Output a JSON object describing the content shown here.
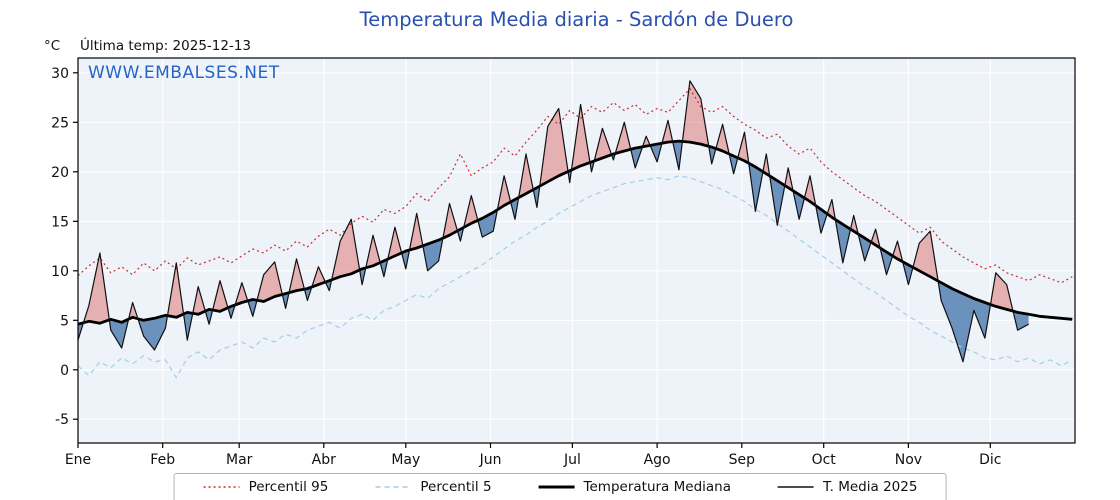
{
  "chart_data": {
    "type": "line",
    "title": "Temperatura Media diaria - Sardón de Duero",
    "units": "°C",
    "subtitle": "Última temp: 2025-12-13",
    "watermark": "WWW.EMBALSES.NET",
    "ylim": [
      -7.4,
      31.5
    ],
    "yticks": [
      -5,
      0,
      5,
      10,
      15,
      20,
      25,
      30
    ],
    "months": [
      "Ene",
      "Feb",
      "Mar",
      "Abr",
      "May",
      "Jun",
      "Jul",
      "Ago",
      "Sep",
      "Oct",
      "Nov",
      "Dic"
    ],
    "month_start_days": [
      0,
      31,
      59,
      90,
      120,
      151,
      181,
      212,
      243,
      273,
      304,
      334
    ],
    "day_step": 4,
    "colors": {
      "plot_bg": "#eef3f9",
      "grid": "#ffffff",
      "frame": "#000000",
      "title": "#2a4fae",
      "watermark": "#2563c9",
      "fill_above": "#d9534f",
      "fill_above_opacity": 0.42,
      "fill_below": "#3f72a8",
      "fill_below_opacity": 0.75
    },
    "series": [
      {
        "name": "Percentil 95",
        "color": "#cc2b2b",
        "style": "dotted",
        "width": 1.2,
        "values": [
          9.5,
          10.5,
          11.3,
          9.8,
          10.4,
          9.6,
          10.8,
          10.0,
          11.0,
          10.2,
          11.3,
          10.6,
          11.0,
          11.4,
          10.8,
          11.5,
          12.2,
          11.8,
          12.6,
          12.0,
          13.0,
          12.4,
          13.5,
          14.2,
          13.6,
          14.8,
          15.5,
          14.9,
          16.2,
          15.8,
          16.5,
          17.8,
          17.0,
          18.4,
          19.5,
          21.8,
          19.6,
          20.4,
          21.0,
          22.4,
          21.6,
          23.0,
          24.2,
          25.6,
          24.8,
          26.2,
          25.4,
          26.6,
          26.0,
          27.0,
          26.2,
          26.8,
          25.8,
          26.4,
          26.0,
          27.2,
          28.4,
          26.6,
          26.0,
          26.6,
          25.6,
          24.8,
          24.2,
          23.4,
          23.8,
          22.6,
          21.8,
          22.4,
          21.0,
          20.0,
          19.2,
          18.4,
          17.6,
          17.0,
          16.2,
          15.4,
          14.6,
          13.8,
          14.4,
          13.0,
          12.2,
          11.4,
          10.8,
          10.2,
          10.6,
          9.8,
          9.4,
          9.0,
          9.6,
          9.2,
          8.8,
          9.4
        ]
      },
      {
        "name": "Percentil 5",
        "color": "#9fcfe8",
        "style": "dashed",
        "width": 1.2,
        "values": [
          0.4,
          -0.6,
          0.8,
          0.2,
          1.2,
          0.6,
          1.4,
          0.8,
          1.0,
          -0.8,
          1.2,
          1.8,
          1.0,
          2.0,
          2.4,
          2.8,
          2.2,
          3.2,
          2.8,
          3.6,
          3.2,
          4.0,
          4.4,
          4.8,
          4.2,
          5.2,
          5.6,
          5.0,
          6.0,
          6.4,
          7.0,
          7.6,
          7.2,
          8.2,
          8.8,
          9.4,
          10.0,
          10.6,
          11.4,
          12.2,
          13.0,
          13.6,
          14.4,
          15.0,
          15.8,
          16.4,
          17.0,
          17.6,
          18.0,
          18.4,
          18.8,
          19.0,
          19.2,
          19.4,
          19.2,
          19.6,
          19.4,
          19.0,
          18.6,
          18.2,
          17.6,
          17.0,
          16.2,
          15.6,
          14.8,
          14.0,
          13.2,
          12.4,
          11.6,
          10.8,
          10.0,
          9.2,
          8.4,
          7.8,
          7.0,
          6.2,
          5.4,
          4.8,
          4.0,
          3.4,
          2.8,
          2.2,
          1.8,
          1.2,
          1.0,
          1.4,
          0.8,
          1.2,
          0.6,
          1.0,
          0.4,
          1.0
        ]
      },
      {
        "name": "Temperatura Mediana",
        "color": "#000000",
        "style": "solid",
        "width": 2.8,
        "values": [
          4.6,
          4.9,
          4.7,
          5.1,
          4.8,
          5.3,
          5.0,
          5.2,
          5.5,
          5.3,
          5.8,
          5.6,
          6.1,
          5.9,
          6.4,
          6.8,
          7.1,
          6.9,
          7.4,
          7.7,
          8.0,
          8.2,
          8.6,
          9.0,
          9.4,
          9.7,
          10.2,
          10.5,
          11.0,
          11.5,
          12.0,
          12.3,
          12.7,
          13.1,
          13.6,
          14.2,
          14.8,
          15.3,
          15.9,
          16.6,
          17.2,
          17.8,
          18.4,
          19.0,
          19.6,
          20.1,
          20.6,
          21.0,
          21.4,
          21.8,
          22.1,
          22.4,
          22.6,
          22.8,
          23.0,
          23.1,
          23.0,
          22.8,
          22.5,
          22.1,
          21.6,
          21.1,
          20.5,
          19.8,
          19.1,
          18.4,
          17.7,
          17.0,
          16.2,
          15.4,
          14.7,
          14.0,
          13.3,
          12.6,
          11.9,
          11.2,
          10.6,
          10.0,
          9.4,
          8.8,
          8.2,
          7.7,
          7.2,
          6.8,
          6.4,
          6.1,
          5.8,
          5.6,
          5.4,
          5.3,
          5.2,
          5.1
        ]
      },
      {
        "name": "T. Media 2025",
        "color": "#111111",
        "style": "solid",
        "width": 1.2,
        "values": [
          3.0,
          6.5,
          11.8,
          4.0,
          2.2,
          6.8,
          3.4,
          2.0,
          4.2,
          10.8,
          3.0,
          8.4,
          4.6,
          9.0,
          5.2,
          8.8,
          5.4,
          9.6,
          10.9,
          6.2,
          11.2,
          7.0,
          10.4,
          8.0,
          13.0,
          15.2,
          8.6,
          13.6,
          9.4,
          14.4,
          10.2,
          15.8,
          10.0,
          11.0,
          16.8,
          13.0,
          17.6,
          13.4,
          14.0,
          19.6,
          15.2,
          21.8,
          16.4,
          24.6,
          26.4,
          18.9,
          26.8,
          20.0,
          24.4,
          21.2,
          25.0,
          20.4,
          23.6,
          21.0,
          25.2,
          20.2,
          29.2,
          27.4,
          20.8,
          24.8,
          19.8,
          24.0,
          16.0,
          21.8,
          14.6,
          20.4,
          15.2,
          19.6,
          13.8,
          17.2,
          10.8,
          15.6,
          11.0,
          14.2,
          9.6,
          13.0,
          8.6,
          12.8,
          14.0,
          7.0,
          4.2,
          0.8,
          6.0,
          3.2,
          9.8,
          8.6,
          4.0,
          4.6,
          null,
          null,
          null,
          null
        ]
      }
    ]
  }
}
